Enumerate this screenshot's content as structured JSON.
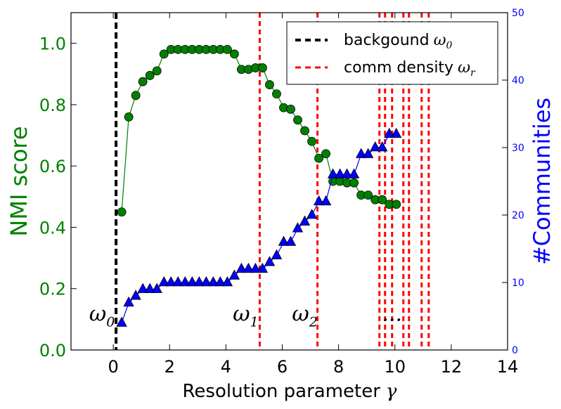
{
  "chart_data": {
    "type": "line",
    "xlabel": "Resolution parameter",
    "xlabel_symbol": "γ",
    "ylabel_left": "NMI score",
    "ylabel_right": "#Communities",
    "xlim": [
      -1.5,
      14
    ],
    "ylim_left": [
      0,
      1.1
    ],
    "ylim_right": [
      0,
      50
    ],
    "x_ticks": [
      0,
      2,
      4,
      6,
      8,
      10,
      12,
      14
    ],
    "x_tick_labels": [
      "0",
      "2",
      "4",
      "6",
      "8",
      "10",
      "12",
      "14"
    ],
    "y_left_ticks": [
      0.0,
      0.2,
      0.4,
      0.6,
      0.8,
      1.0
    ],
    "y_left_tick_labels": [
      "0.0",
      "0.2",
      "0.4",
      "0.6",
      "0.8",
      "1.0"
    ],
    "y_right_ticks": [
      0,
      10,
      20,
      30,
      40,
      50
    ],
    "y_right_tick_labels": [
      "0",
      "10",
      "20",
      "30",
      "40",
      "50"
    ],
    "grid": false,
    "legend_position": "top-right",
    "legend": [
      {
        "label": "backgound",
        "symbol": "ω",
        "sub": "0",
        "color": "#000000"
      },
      {
        "label": "comm density",
        "symbol": "ω",
        "sub": "r",
        "color": "#ff0000"
      }
    ],
    "annotations": [
      {
        "symbol": "ω",
        "sub": "0",
        "x": -0.4,
        "y": 0.1
      },
      {
        "symbol": "ω",
        "sub": "1",
        "x": 4.7,
        "y": 0.1
      },
      {
        "symbol": "ω",
        "sub": "2",
        "x": 6.8,
        "y": 0.1
      },
      {
        "symbol": "...",
        "sub": "",
        "x": 9.9,
        "y": 0.1
      }
    ],
    "vlines": [
      {
        "x": 0.1,
        "color": "#000000",
        "style": "dashed",
        "width": "thick"
      },
      {
        "x": 5.2,
        "color": "#ff0000",
        "style": "dashed"
      },
      {
        "x": 7.25,
        "color": "#ff0000",
        "style": "dashed"
      },
      {
        "x": 9.45,
        "color": "#ff0000",
        "style": "dashed"
      },
      {
        "x": 9.65,
        "color": "#ff0000",
        "style": "dashed"
      },
      {
        "x": 9.9,
        "color": "#ff0000",
        "style": "dashed"
      },
      {
        "x": 10.3,
        "color": "#ff0000",
        "style": "dashed"
      },
      {
        "x": 10.5,
        "color": "#ff0000",
        "style": "dashed"
      },
      {
        "x": 10.95,
        "color": "#ff0000",
        "style": "dashed"
      },
      {
        "x": 11.2,
        "color": "#ff0000",
        "style": "dashed"
      }
    ],
    "series": [
      {
        "name": "NMI score",
        "axis": "left",
        "color": "#008000",
        "marker": "circle",
        "x": [
          0.3,
          0.55,
          0.8,
          1.05,
          1.3,
          1.55,
          1.8,
          2.05,
          2.3,
          2.55,
          2.8,
          3.05,
          3.3,
          3.55,
          3.8,
          4.05,
          4.3,
          4.55,
          4.8,
          5.05,
          5.3,
          5.55,
          5.8,
          6.05,
          6.3,
          6.55,
          6.8,
          7.05,
          7.3,
          7.55,
          7.8,
          8.05,
          8.3,
          8.55,
          8.8,
          9.05,
          9.3,
          9.55,
          9.8,
          10.05
        ],
        "values": [
          0.45,
          0.76,
          0.83,
          0.875,
          0.895,
          0.91,
          0.965,
          0.98,
          0.98,
          0.98,
          0.98,
          0.98,
          0.98,
          0.98,
          0.98,
          0.98,
          0.965,
          0.915,
          0.915,
          0.92,
          0.92,
          0.865,
          0.835,
          0.79,
          0.785,
          0.75,
          0.715,
          0.68,
          0.625,
          0.64,
          0.55,
          0.55,
          0.545,
          0.545,
          0.505,
          0.505,
          0.49,
          0.49,
          0.475,
          0.475
        ]
      },
      {
        "name": "#Communities",
        "axis": "right",
        "color": "#0000ff",
        "marker": "triangle",
        "x": [
          0.3,
          0.55,
          0.8,
          1.05,
          1.3,
          1.55,
          1.8,
          2.05,
          2.3,
          2.55,
          2.8,
          3.05,
          3.3,
          3.55,
          3.8,
          4.05,
          4.3,
          4.55,
          4.8,
          5.05,
          5.3,
          5.55,
          5.8,
          6.05,
          6.3,
          6.55,
          6.8,
          7.05,
          7.3,
          7.55,
          7.8,
          8.05,
          8.3,
          8.55,
          8.8,
          9.05,
          9.3,
          9.55,
          9.8,
          10.05
        ],
        "values": [
          4,
          7,
          8,
          9,
          9,
          9,
          10,
          10,
          10,
          10,
          10,
          10,
          10,
          10,
          10,
          10,
          11,
          12,
          12,
          12,
          12,
          13,
          14,
          16,
          16,
          18,
          19,
          20,
          22,
          22,
          26,
          26,
          26,
          26,
          29,
          29,
          30,
          30,
          32,
          32
        ]
      }
    ]
  }
}
